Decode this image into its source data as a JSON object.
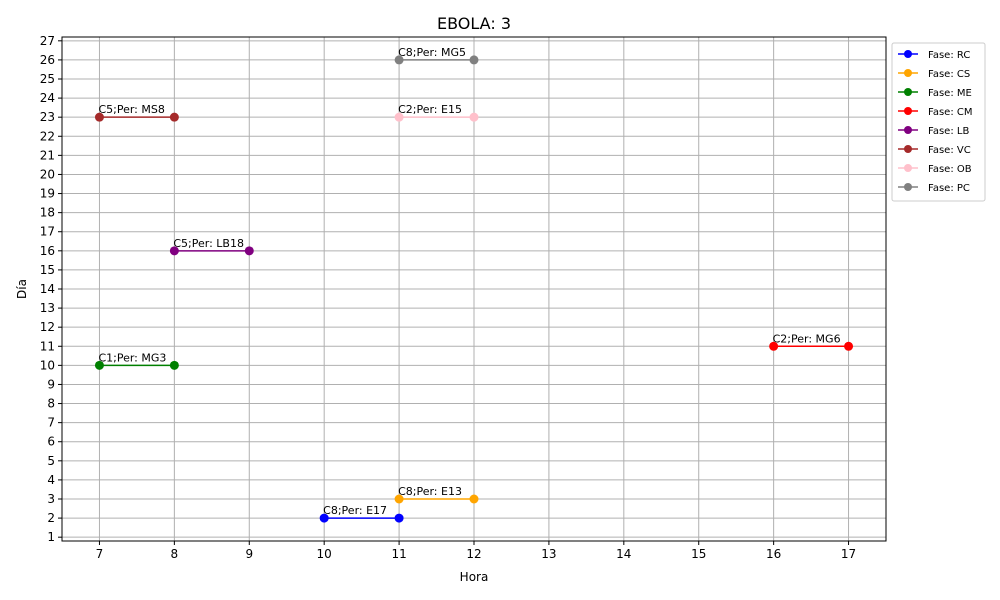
{
  "chart_data": {
    "type": "line",
    "title": "EBOLA: 3",
    "xlabel": "Hora",
    "ylabel": "Día",
    "xlim": [
      6.5,
      17.5
    ],
    "ylim": [
      0.8,
      27.2
    ],
    "x_ticks": [
      7,
      8,
      9,
      10,
      11,
      12,
      13,
      14,
      15,
      16,
      17
    ],
    "y_ticks": [
      1,
      2,
      3,
      4,
      5,
      6,
      7,
      8,
      9,
      10,
      11,
      12,
      13,
      14,
      15,
      16,
      17,
      18,
      19,
      20,
      21,
      22,
      23,
      24,
      25,
      26,
      27
    ],
    "grid": true,
    "legend_position": "outside-top-right",
    "series": [
      {
        "name": "Fase: RC",
        "color": "#0000ff",
        "x": [
          10,
          11
        ],
        "y": [
          2,
          2
        ],
        "label": "C8;Per: E17"
      },
      {
        "name": "Fase: CS",
        "color": "#ffa500",
        "x": [
          11,
          12
        ],
        "y": [
          3,
          3
        ],
        "label": "C8;Per: E13"
      },
      {
        "name": "Fase: ME",
        "color": "#008000",
        "x": [
          7,
          8
        ],
        "y": [
          10,
          10
        ],
        "label": "C1;Per: MG3"
      },
      {
        "name": "Fase: CM",
        "color": "#ff0000",
        "x": [
          16,
          17
        ],
        "y": [
          11,
          11
        ],
        "label": "C2;Per: MG6"
      },
      {
        "name": "Fase: LB",
        "color": "#800080",
        "x": [
          8,
          9
        ],
        "y": [
          16,
          16
        ],
        "label": "C5;Per: LB18"
      },
      {
        "name": "Fase: VC",
        "color": "#a52a2a",
        "x": [
          7,
          8
        ],
        "y": [
          23,
          23
        ],
        "label": "C5;Per: MS8"
      },
      {
        "name": "Fase: OB",
        "color": "#ffc0cb",
        "x": [
          11,
          12
        ],
        "y": [
          23,
          23
        ],
        "label": "C2;Per: E15"
      },
      {
        "name": "Fase: PC",
        "color": "#808080",
        "x": [
          11,
          12
        ],
        "y": [
          26,
          26
        ],
        "label": "C8;Per: MG5"
      }
    ]
  }
}
